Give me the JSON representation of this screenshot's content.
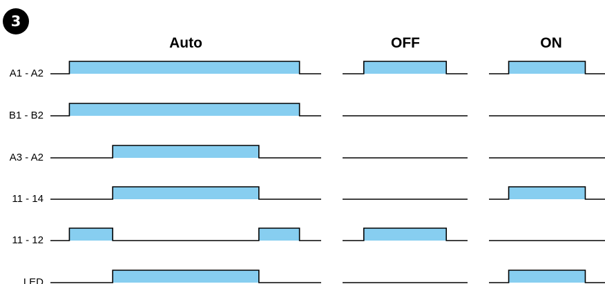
{
  "step": {
    "number": "3"
  },
  "colors": {
    "pulse_fill": "#87CEF0",
    "line": "#000000",
    "badge_bg": "#000000",
    "badge_text": "#ffffff"
  },
  "columns": [
    {
      "key": "auto",
      "label": "Auto"
    },
    {
      "key": "off",
      "label": "OFF"
    },
    {
      "key": "on",
      "label": "ON"
    }
  ],
  "rows": [
    {
      "key": "a1-a2",
      "label": "A1 - A2",
      "states": {
        "auto": [
          [
            0.07,
            0.92
          ]
        ],
        "off": [
          [
            0.17,
            0.83
          ]
        ],
        "on": [
          [
            0.17,
            0.83
          ]
        ]
      }
    },
    {
      "key": "b1-b2",
      "label": "B1 - B2",
      "states": {
        "auto": [
          [
            0.07,
            0.92
          ]
        ],
        "off": [],
        "on": []
      }
    },
    {
      "key": "a3-a2",
      "label": "A3 - A2",
      "states": {
        "auto": [
          [
            0.23,
            0.77
          ]
        ],
        "off": [],
        "on": []
      }
    },
    {
      "key": "11-14",
      "label": "11 - 14",
      "states": {
        "auto": [
          [
            0.23,
            0.77
          ]
        ],
        "off": [],
        "on": [
          [
            0.17,
            0.83
          ]
        ]
      }
    },
    {
      "key": "11-12",
      "label": "11 - 12",
      "states": {
        "auto": [
          [
            0.07,
            0.23
          ],
          [
            0.77,
            0.92
          ]
        ],
        "off": [
          [
            0.17,
            0.83
          ]
        ],
        "on": []
      }
    },
    {
      "key": "led",
      "label": "LED",
      "states": {
        "auto": [
          [
            0.23,
            0.77
          ]
        ],
        "off": [],
        "on": [
          [
            0.17,
            0.83
          ]
        ]
      }
    }
  ]
}
